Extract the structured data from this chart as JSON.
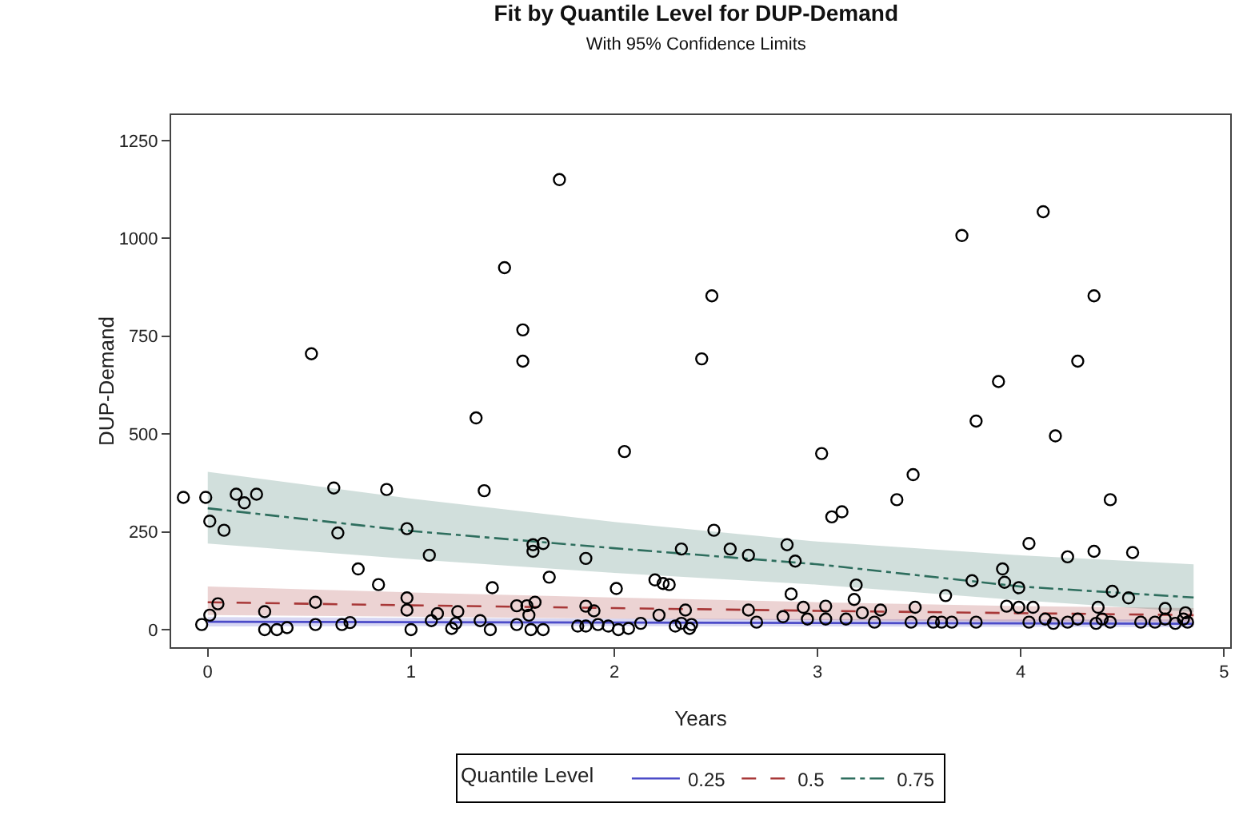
{
  "chart_data": {
    "type": "scatter",
    "title": "Fit by Quantile Level for DUP-Demand",
    "subtitle": "With 95% Confidence Limits",
    "xlabel": "Years",
    "ylabel": "DUP-Demand",
    "legend_title": "Quantile Level",
    "legend": "bottom",
    "grid": false,
    "xlim": [
      -0.18,
      5.03
    ],
    "ylim": [
      -45,
      1315
    ],
    "xticks": [
      0,
      1,
      2,
      3,
      4,
      5
    ],
    "yticks": [
      0,
      250,
      500,
      750,
      1000,
      1250
    ],
    "series": [
      {
        "marker": "circle",
        "color": "#000000",
        "x": [
          1.73,
          1.46,
          1.55,
          1.55,
          0.51,
          2.43,
          1.32,
          2.05,
          -0.12,
          -0.01,
          0.14,
          0.24,
          0.18,
          0.62,
          0.88,
          1.36,
          0.01,
          0.08,
          0.64,
          0.98,
          1.09,
          1.6,
          1.65,
          1.6,
          1.86,
          2.33,
          0.74,
          0.84,
          1.4,
          1.68,
          2.01,
          2.2,
          2.24,
          2.27,
          0.05,
          0.01,
          -0.03,
          0.28,
          0.28,
          0.34,
          0.39,
          0.53,
          0.53,
          0.66,
          0.7,
          0.98,
          0.98,
          1.0,
          1.1,
          1.13,
          1.2,
          1.22,
          1.23,
          1.34,
          1.39,
          1.52,
          1.52,
          1.57,
          1.61,
          1.58,
          1.59,
          1.65,
          1.82,
          1.86,
          1.9,
          1.86,
          1.92,
          1.97,
          2.02,
          2.07,
          2.13,
          2.22,
          2.35,
          2.3,
          2.37,
          4.11,
          3.71,
          2.48,
          4.36,
          4.28,
          3.89,
          3.78,
          4.17,
          3.02,
          3.47,
          3.39,
          3.07,
          3.12,
          4.44,
          2.49,
          2.57,
          2.66,
          2.85,
          2.89,
          4.04,
          4.23,
          4.36,
          4.55,
          3.19,
          3.63,
          3.76,
          3.91,
          3.92,
          3.99,
          4.45,
          4.53,
          2.87,
          2.33,
          2.38,
          2.66,
          2.7,
          2.83,
          2.93,
          2.95,
          3.04,
          3.04,
          3.14,
          3.18,
          3.22,
          3.28,
          3.31,
          3.48,
          3.46,
          3.57,
          3.61,
          3.66,
          3.78,
          3.93,
          3.99,
          4.06,
          4.04,
          4.12,
          4.16,
          4.23,
          4.28,
          4.38,
          4.4,
          4.37,
          4.44,
          4.59,
          4.66,
          4.71,
          4.76,
          4.8,
          4.82,
          4.71,
          4.81
        ],
        "values": [
          1150,
          925,
          766,
          686,
          705,
          692,
          541,
          455,
          338,
          338,
          346,
          346,
          324,
          362,
          358,
          355,
          277,
          254,
          247,
          258,
          190,
          217,
          220,
          200,
          182,
          206,
          155,
          115,
          107,
          134,
          105,
          127,
          118,
          115,
          66,
          37,
          13,
          46,
          0,
          0,
          5,
          70,
          13,
          13,
          18,
          81,
          50,
          0,
          23,
          41,
          3,
          16,
          46,
          23,
          0,
          61,
          13,
          61,
          70,
          37,
          0,
          0,
          9,
          60,
          48,
          9,
          13,
          9,
          0,
          3,
          16,
          37,
          50,
          9,
          3,
          1068,
          1007,
          853,
          853,
          686,
          634,
          533,
          495,
          450,
          396,
          332,
          288,
          301,
          332,
          254,
          206,
          190,
          217,
          175,
          220,
          186,
          200,
          197,
          114,
          87,
          125,
          155,
          121,
          107,
          98,
          81,
          91,
          16,
          13,
          50,
          19,
          33,
          57,
          27,
          60,
          27,
          27,
          77,
          43,
          19,
          50,
          57,
          19,
          19,
          19,
          19,
          19,
          60,
          57,
          57,
          19,
          27,
          16,
          19,
          27,
          57,
          27,
          16,
          19,
          19,
          19,
          27,
          16,
          27,
          19,
          54,
          43
        ]
      },
      {
        "type": "line",
        "name": "0.25",
        "color": "#4b4bc8",
        "line_style": "solid",
        "x": [
          0,
          1,
          2,
          3,
          4,
          4.85
        ],
        "values": [
          20,
          19,
          18,
          17,
          16,
          15
        ],
        "lower": [
          8,
          9,
          9,
          8,
          7,
          6
        ],
        "upper": [
          32,
          30,
          28,
          27,
          26,
          26
        ]
      },
      {
        "type": "line",
        "name": "0.5",
        "color": "#a83838",
        "line_style": "dashed",
        "x": [
          0,
          1,
          2,
          3,
          4,
          4.85
        ],
        "values": [
          70,
          62,
          55,
          48,
          42,
          37
        ],
        "lower": [
          37,
          33,
          28,
          24,
          21,
          20
        ],
        "upper": [
          110,
          95,
          82,
          70,
          60,
          55
        ]
      },
      {
        "type": "line",
        "name": "0.75",
        "color": "#2e6e5e",
        "line_style": "dashdot",
        "x": [
          0,
          1,
          2,
          3,
          4,
          4.85
        ],
        "values": [
          310,
          252,
          208,
          167,
          110,
          82
        ],
        "lower": [
          220,
          180,
          145,
          115,
          75,
          45
        ],
        "upper": [
          403,
          335,
          275,
          225,
          190,
          167
        ]
      }
    ]
  }
}
